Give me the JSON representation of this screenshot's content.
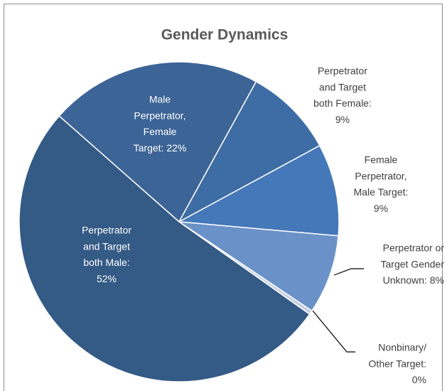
{
  "chart_data": {
    "type": "pie",
    "title": "Gender Dynamics",
    "values": [
      21.5,
      9.1,
      9.3,
      8.0,
      0.4,
      51.7
    ],
    "value_labels": [
      [
        "Male",
        "Perpetrator,",
        "Female",
        "Target: 22%"
      ],
      [
        "Perpetrator",
        "and Target",
        "both Female:",
        "9%"
      ],
      [
        "Female",
        "Perpetrator,",
        "Male Target:",
        "9%"
      ],
      [
        "Perpetrator or",
        "Target Gender",
        "Unknown: 8%"
      ],
      [
        "Nonbinary/",
        "Other Target:",
        "0%"
      ],
      [
        "Perpetrator",
        "and Target",
        "both Male:",
        "52%"
      ]
    ],
    "colors": [
      "#3c6496",
      "#3e6ca4",
      "#4478b8",
      "#6b92c8",
      "#c3cfe0",
      "#345a86"
    ]
  }
}
